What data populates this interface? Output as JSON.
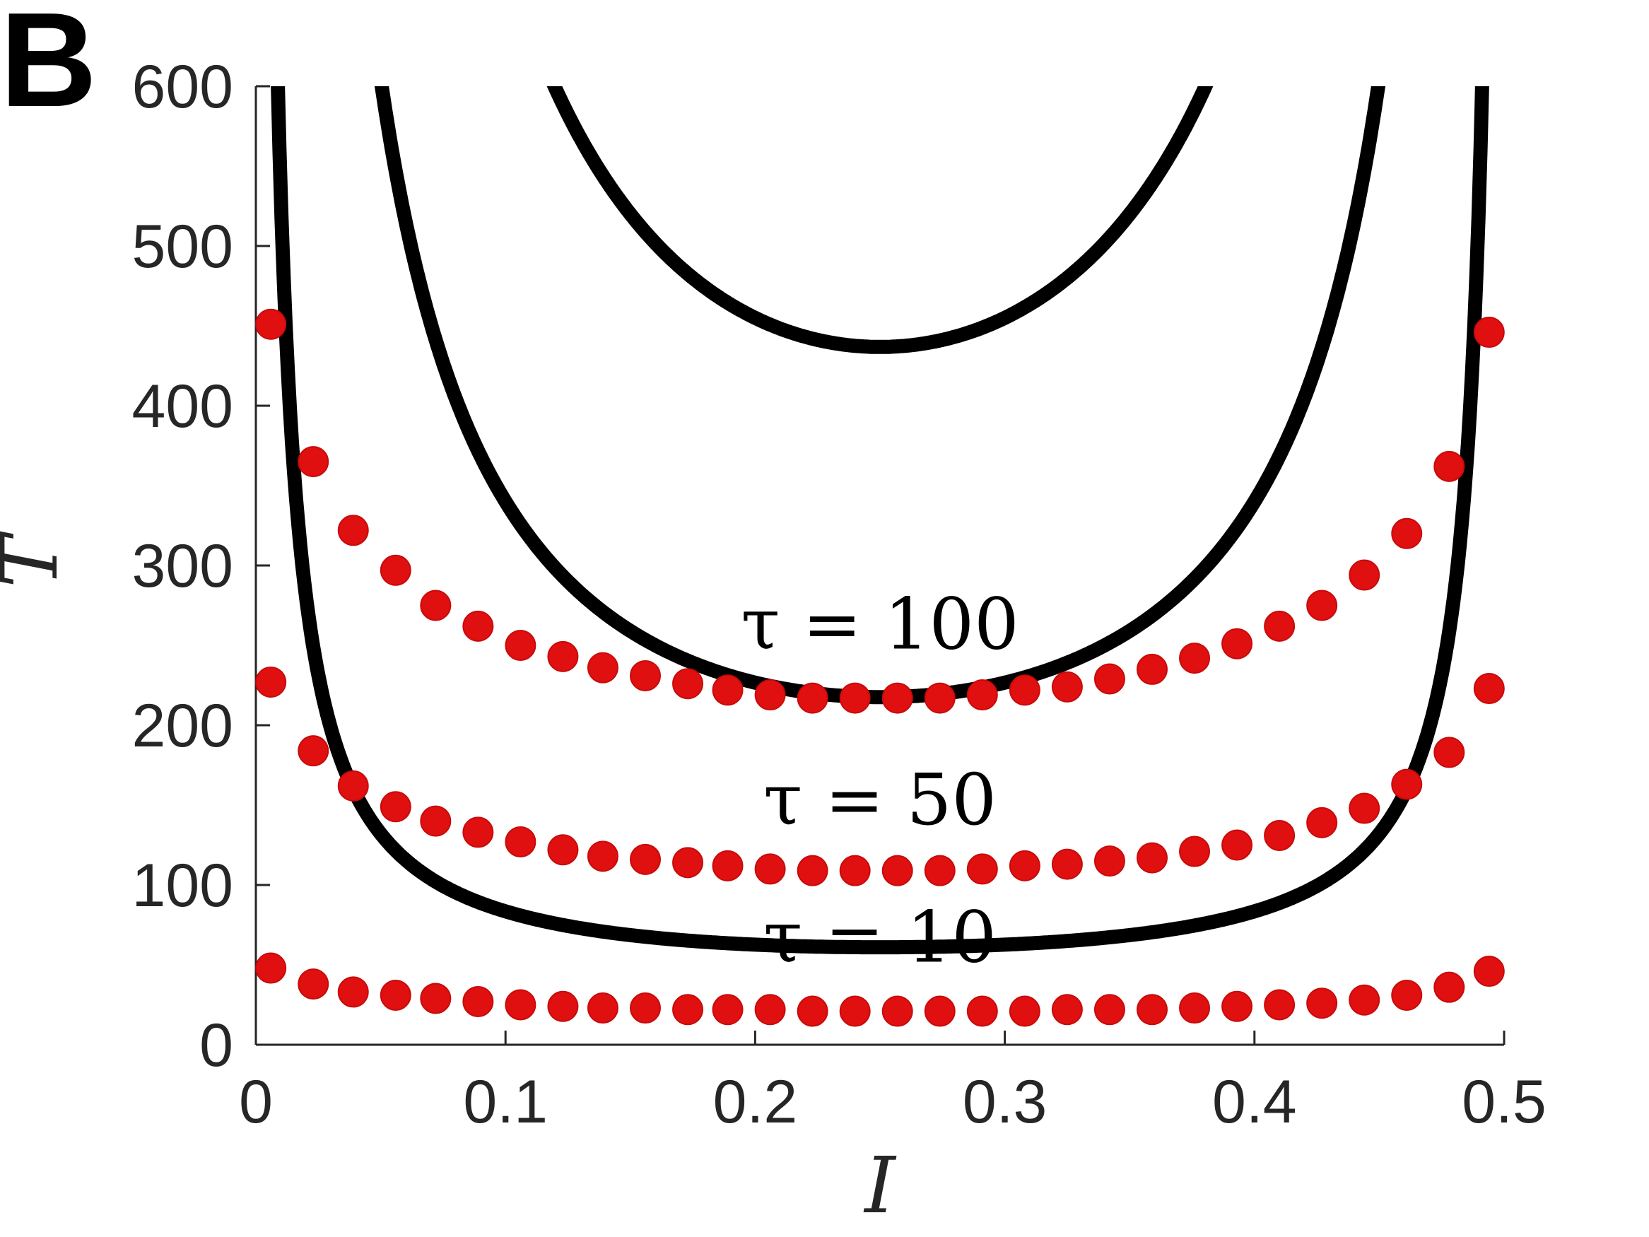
{
  "panel_label": "B",
  "colors": {
    "curve": "#000000",
    "points": "#e01010",
    "axis": "#262626"
  },
  "chart_data": {
    "type": "line",
    "title": "",
    "xlabel": "I",
    "ylabel": "T",
    "xlim": [
      0,
      0.5
    ],
    "ylim": [
      0,
      600
    ],
    "xticks": [
      0,
      0.1,
      0.2,
      0.3,
      0.4,
      0.5
    ],
    "xtick_labels": [
      "0",
      "0.1",
      "0.2",
      "0.3",
      "0.4",
      "0.5"
    ],
    "yticks": [
      0,
      100,
      200,
      300,
      400,
      500,
      600
    ],
    "ytick_labels": [
      "0",
      "100",
      "200",
      "300",
      "400",
      "500",
      "600"
    ],
    "grid": false,
    "series": [
      {
        "name": "τ = 100",
        "curve": {
          "amplitude": 27.3,
          "floor": 0
        },
        "label_at": {
          "x": 0.25,
          "y": 248
        },
        "markers": {
          "x": [
            0.006,
            0.023,
            0.039,
            0.056,
            0.072,
            0.089,
            0.106,
            0.123,
            0.139,
            0.156,
            0.173,
            0.189,
            0.206,
            0.223,
            0.24,
            0.257,
            0.274,
            0.291,
            0.308,
            0.325,
            0.342,
            0.359,
            0.376,
            0.393,
            0.41,
            0.427,
            0.444,
            0.461,
            0.478,
            0.494
          ],
          "y": [
            451,
            365,
            322,
            297,
            275,
            262,
            250,
            243,
            236,
            231,
            226,
            222,
            219,
            217,
            217,
            217,
            217,
            219,
            222,
            224,
            229,
            235,
            242,
            251,
            262,
            275,
            294,
            320,
            362,
            446
          ]
        }
      },
      {
        "name": "τ = 50",
        "curve": {
          "amplitude": 13.6,
          "floor": 0
        },
        "label_at": {
          "x": 0.25,
          "y": 138
        },
        "markers": {
          "x": [
            0.006,
            0.023,
            0.039,
            0.056,
            0.072,
            0.089,
            0.106,
            0.123,
            0.139,
            0.156,
            0.173,
            0.189,
            0.206,
            0.223,
            0.24,
            0.257,
            0.274,
            0.291,
            0.308,
            0.325,
            0.342,
            0.359,
            0.376,
            0.393,
            0.41,
            0.427,
            0.444,
            0.461,
            0.478,
            0.494
          ],
          "y": [
            227,
            184,
            162,
            149,
            140,
            133,
            127,
            122,
            118,
            116,
            114,
            112,
            110,
            109,
            109,
            109,
            109,
            110,
            112,
            113,
            115,
            117,
            121,
            125,
            131,
            139,
            148,
            163,
            183,
            223
          ]
        }
      },
      {
        "name": "τ = 10",
        "curve": {
          "amplitude": 2.5,
          "floor": 21
        },
        "label_at": {
          "x": 0.25,
          "y": 52
        },
        "markers": {
          "x": [
            0.006,
            0.023,
            0.039,
            0.056,
            0.072,
            0.089,
            0.106,
            0.123,
            0.139,
            0.156,
            0.173,
            0.189,
            0.206,
            0.223,
            0.24,
            0.257,
            0.274,
            0.291,
            0.308,
            0.325,
            0.342,
            0.359,
            0.376,
            0.393,
            0.41,
            0.427,
            0.444,
            0.461,
            0.478,
            0.494
          ],
          "y": [
            48,
            38,
            33,
            31,
            29,
            27,
            25,
            24,
            23,
            23,
            22,
            22,
            22,
            21,
            21,
            21,
            21,
            21,
            21,
            22,
            22,
            22,
            23,
            24,
            25,
            26,
            28,
            31,
            36,
            46
          ]
        }
      }
    ]
  }
}
